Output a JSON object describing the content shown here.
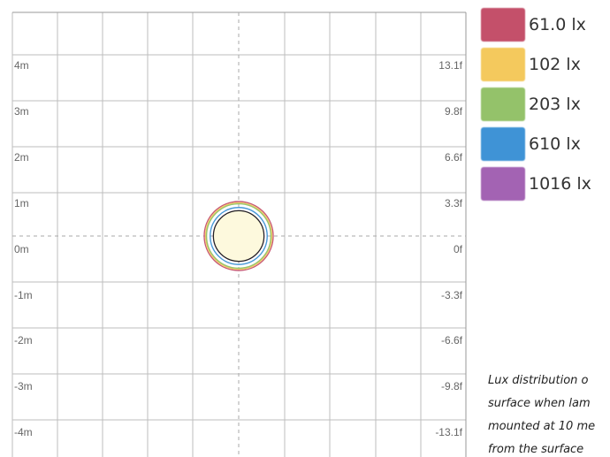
{
  "chart_data": {
    "type": "contour",
    "title": "",
    "xlabel": "",
    "ylabel": "",
    "grid": true,
    "legend_position": "right",
    "y_ticks_m": [
      "4m",
      "3m",
      "2m",
      "1m",
      "0m",
      "-1m",
      "-2m",
      "-3m",
      "-4m"
    ],
    "y_ticks_ft": [
      "13.1f",
      "9.8f",
      "6.6f",
      "3.3f",
      "0f",
      "-3.3f",
      "-6.6f",
      "-9.8f",
      "-13.1f"
    ],
    "y_values_m": [
      4,
      3,
      2,
      1,
      0,
      -1,
      -2,
      -3,
      -4
    ],
    "y_range_m": [
      -4.5,
      5.2
    ],
    "x_range_m": [
      -5.2,
      5
    ],
    "series": [
      {
        "name": "61.0 lx",
        "lux": 61.0,
        "radius_m": 0.75,
        "color": "#c4506a"
      },
      {
        "name": "102 lx",
        "lux": 102,
        "radius_m": 0.72,
        "color": "#f4c95d"
      },
      {
        "name": "203 lx",
        "lux": 203,
        "radius_m": 0.7,
        "color": "#94c26a"
      },
      {
        "name": "610 lx",
        "lux": 610,
        "radius_m": 0.62,
        "color": "#3f93d6"
      },
      {
        "name": "1016 lx",
        "lux": 1016,
        "radius_m": 0.55,
        "color": "#a363b3"
      }
    ]
  },
  "legend": [
    {
      "label": "61.0 lx",
      "color": "#c4506a"
    },
    {
      "label": "102 lx",
      "color": "#f4c95d"
    },
    {
      "label": "203 lx",
      "color": "#94c26a"
    },
    {
      "label": "610 lx",
      "color": "#3f93d6"
    },
    {
      "label": "1016 lx",
      "color": "#a363b3"
    }
  ],
  "caption": [
    "Lux distribution o",
    "surface when lam",
    "mounted at 10 me",
    "from the surface"
  ]
}
